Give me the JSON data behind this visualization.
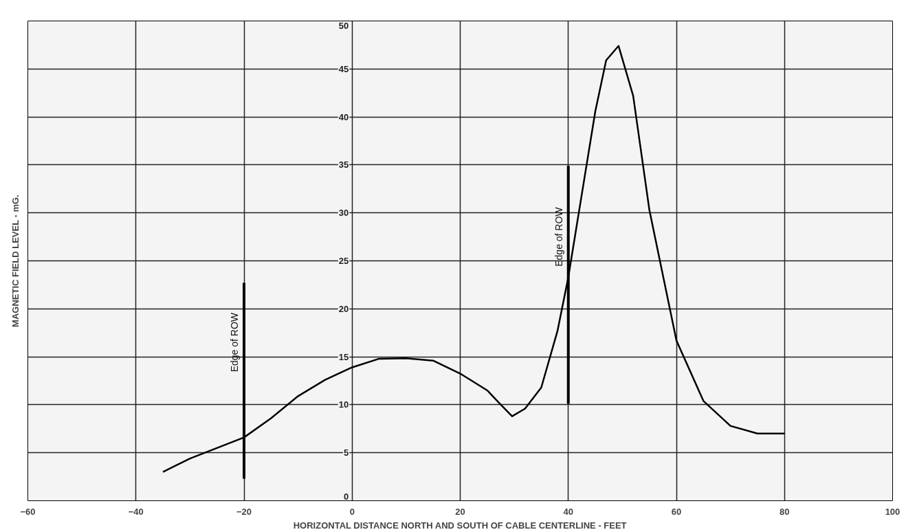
{
  "chart_data": {
    "type": "line",
    "xlabel": "HORIZONTAL DISTANCE NORTH AND SOUTH OF CABLE CENTERLINE - FEET",
    "ylabel": "MAGNETIC FIELD LEVEL - mG.",
    "xlim": [
      -60,
      100
    ],
    "ylim": [
      0,
      50
    ],
    "xticks": [
      -60,
      -40,
      -20,
      0,
      20,
      40,
      60,
      80,
      100
    ],
    "yticks": [
      0,
      5,
      10,
      15,
      20,
      25,
      30,
      35,
      40,
      45,
      50
    ],
    "grid": true,
    "line_style": "solid",
    "marker": "none",
    "series": [
      {
        "color": "#000000",
        "x": [
          -35,
          -30,
          -20,
          -15,
          -10,
          -5,
          0,
          5,
          10,
          15,
          20,
          25,
          27,
          29.6,
          32,
          35,
          38,
          40,
          45,
          47,
          49.3,
          52,
          55,
          60,
          65,
          70,
          75,
          80
        ],
        "values": [
          3.0,
          4.4,
          6.6,
          8.6,
          10.9,
          12.6,
          13.9,
          14.8,
          14.85,
          14.6,
          13.25,
          11.5,
          10.3,
          8.8,
          9.6,
          11.8,
          17.7,
          23.3,
          40.6,
          45.9,
          47.4,
          42.2,
          30.3,
          16.7,
          10.4,
          7.8,
          7.0,
          7.0
        ]
      },
      {
        "color": "#000000",
        "x": [
          -20,
          -20
        ],
        "values": [
          2.3,
          22.7
        ]
      },
      {
        "color": "#000000",
        "x": [
          40,
          40
        ],
        "values": [
          10.1,
          34.9
        ]
      }
    ],
    "annotations": [
      {
        "text": "Edge of ROW",
        "x": -20,
        "y": 16.5
      },
      {
        "text": "Edge of ROW",
        "x": 40,
        "y": 27.5
      }
    ]
  }
}
